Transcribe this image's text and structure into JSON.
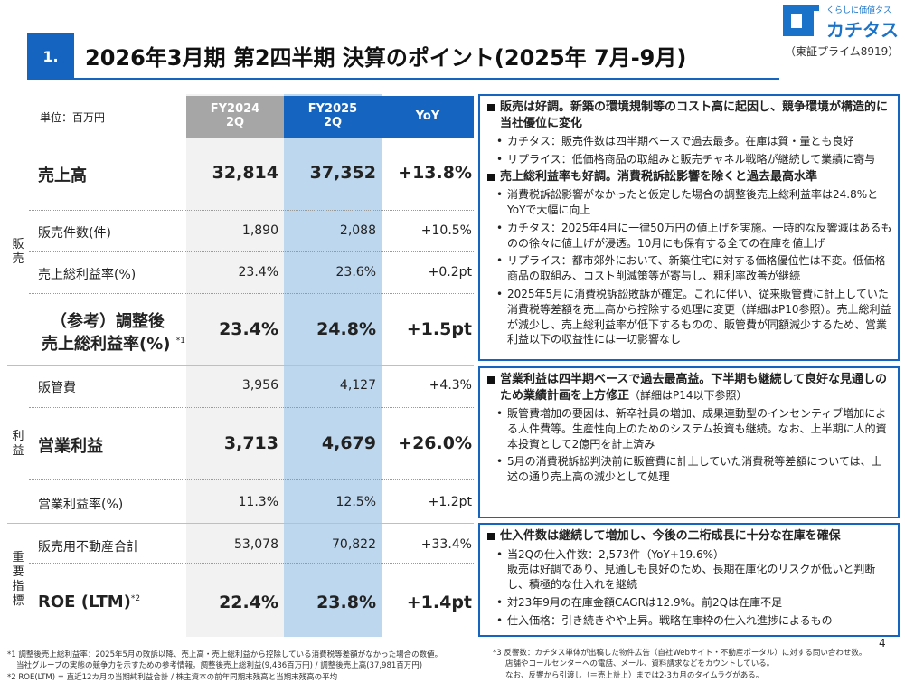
{
  "header": {
    "section_number": "1.",
    "title": "2026年3月期 第2四半期 決算のポイント(2025年 7月-9月)",
    "logo_tagline": "くらしに価値タス",
    "logo_name": "カチタス",
    "listing": "（東証プライム8919）",
    "accent_color": "#1565c0"
  },
  "table": {
    "unit_label": "単位：百万円",
    "columns": [
      "FY2024\n2Q",
      "FY2025\n2Q",
      "YoY"
    ],
    "groups": {
      "sales": "販\n売",
      "profit": "利\n益",
      "key": "重\n要\n指\n標"
    },
    "rows": [
      {
        "label": "売上高",
        "fy2024": "32,814",
        "fy2025": "37,352",
        "yoy": "+13.8%"
      },
      {
        "label": "販売件数(件)",
        "fy2024": "1,890",
        "fy2025": "2,088",
        "yoy": "+10.5%"
      },
      {
        "label": "売上総利益率(%)",
        "fy2024": "23.4%",
        "fy2025": "23.6%",
        "yoy": "+0.2pt"
      },
      {
        "label_line1": "（参考）調整後",
        "label_line2": "売上総利益率(%)",
        "note": "*1",
        "fy2024": "23.4%",
        "fy2025": "24.8%",
        "yoy": "+1.5pt"
      },
      {
        "label": "販管費",
        "fy2024": "3,956",
        "fy2025": "4,127",
        "yoy": "+4.3%"
      },
      {
        "label": "営業利益",
        "fy2024": "3,713",
        "fy2025": "4,679",
        "yoy": "+26.0%"
      },
      {
        "label": "営業利益率(%)",
        "fy2024": "11.3%",
        "fy2025": "12.5%",
        "yoy": "+1.2pt"
      },
      {
        "label": "販売用不動産合計",
        "fy2024": "53,078",
        "fy2025": "70,822",
        "yoy": "+33.4%"
      },
      {
        "label": "ROE (LTM)",
        "note": "*2",
        "fy2024": "22.4%",
        "fy2025": "23.8%",
        "yoy": "+1.4pt"
      }
    ]
  },
  "boxes": [
    {
      "heading": "販売は好調。新築の環境規制等のコスト高に起因し、競争環境が構造的に当社優位に変化",
      "bullets": [
        "カチタス：販売件数は四半期ベースで過去最多。在庫は質・量とも良好",
        "リプライス：低価格商品の取組みと販売チャネル戦略が継続して業績に寄与"
      ],
      "heading2": "売上総利益率も好調。消費税訴訟影響を除くと過去最高水準",
      "bullets2": [
        "消費税訴訟影響がなかったと仮定した場合の調整後売上総利益率は24.8%とYoYで大幅に向上",
        "カチタス：2025年4月に一律50万円の値上げを実施。一時的な反響減はあるものの徐々に値上げが浸透。10月にも保有する全ての在庫を値上げ",
        "リプライス：都市郊外において、新築住宅に対する価格優位性は不変。低価格商品の取組み、コスト削減策等が寄与し、粗利率改善が継続",
        "2025年5月に消費税訴訟敗訴が確定。これに伴い、従来販管費に計上していた消費税等差額を売上高から控除する処理に変更（詳細はP10参照）。売上総利益が減少し、売上総利益率が低下するものの、販管費が同額減少するため、営業利益以下の収益性には一切影響なし"
      ]
    },
    {
      "heading": "営業利益は四半期ベースで過去最高益。下半期も継続して良好な見通しのため業績計画を上方修正",
      "heading_note": "（詳細はP14以下参照）",
      "bullets": [
        "販管費増加の要因は、新卒社員の増加、成果連動型のインセンティブ増加による人件費等。生産性向上のためのシステム投資も継続。なお、上半期に人的資本投資として2億円を計上済み",
        "5月の消費税訴訟判決前に販管費に計上していた消費税等差額については、上述の通り売上高の減少として処理"
      ]
    },
    {
      "heading": "仕入件数は継続して増加し、今後の二桁成長に十分な在庫を確保",
      "bullets": [
        "当2Qの仕入件数：2,573件（YoY+19.6%）",
        "対23年9月の在庫金額CAGRは12.9%。前2Qは在庫不足",
        "仕入価格：引き続きやや上昇。戦略在庫枠の仕入れ進捗によるもの"
      ],
      "bullet1_cont": "販売は好調であり、見通しも良好のため、長期在庫化のリスクが低いと判断し、積極的な仕入れを継続"
    }
  ],
  "footnotes": {
    "left1": "*1 調整後売上総利益率：2025年5月の敗訴以降、売上高・売上総利益から控除している消費税等差額がなかった場合の数値。",
    "left2": "当社グループの実態の競争力を示すための参考情報。調整後売上総利益(9,436百万円) / 調整後売上高(37,981百万円)",
    "left3": "*2 ROE(LTM) = 直近12カ月の当期純利益合計 / 株主資本の前年同期末残高と当期末残高の平均",
    "right1": "*3 反響数：カチタス単体が出稿した物件広告（自社Webサイト・不動産ポータル）に対する問い合わせ数。",
    "right2": "店舗やコールセンターへの電話、メール、資料請求などをカウントしている。",
    "right3": "なお、反響から引渡し（＝売上計上）までは2-3カ月のタイムラグがある。"
  },
  "page_number": "4"
}
